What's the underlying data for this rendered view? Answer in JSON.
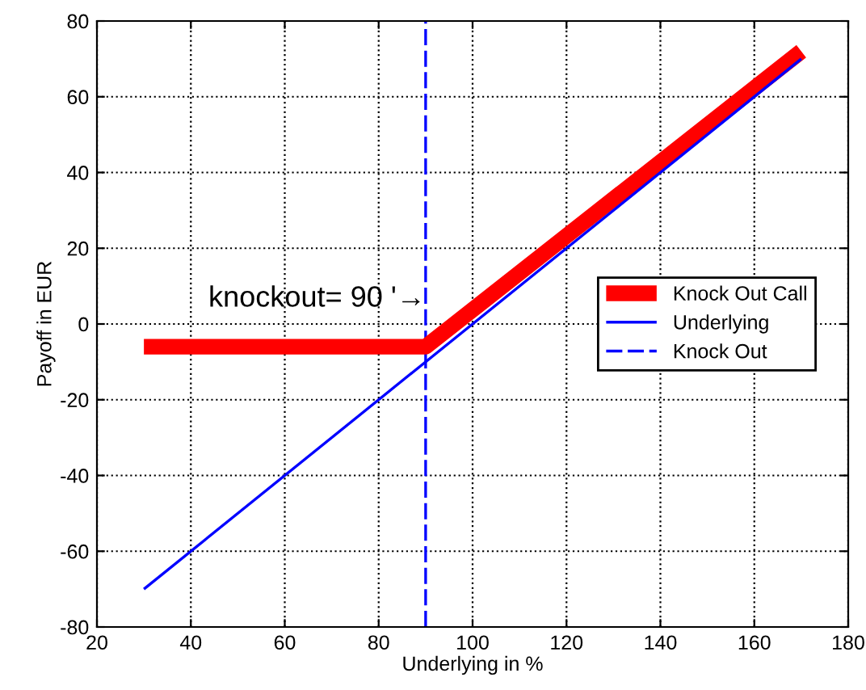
{
  "chart_data": {
    "type": "line",
    "xlabel": "Underlying in %",
    "ylabel": "Payoff in EUR",
    "series": [
      {
        "name": "Knock Out Call",
        "color": "#ff0000",
        "x": [
          30,
          90,
          170
        ],
        "values": [
          -6,
          -6,
          72
        ]
      },
      {
        "name": "Underlying",
        "color": "#0000ff",
        "x": [
          30,
          170
        ],
        "values": [
          -70,
          70
        ]
      },
      {
        "name": "Knock Out",
        "color": "#0000ff",
        "x": [
          90,
          90
        ],
        "values": [
          -80,
          80
        ],
        "line_style": "dashed"
      }
    ],
    "annotations": [
      {
        "text": "knockout= 90 '→",
        "x": 90,
        "y": 3
      }
    ],
    "xlim": [
      20,
      180
    ],
    "xticks": [
      20,
      40,
      60,
      80,
      100,
      120,
      140,
      160,
      180
    ],
    "ylim": [
      -80,
      80
    ],
    "yticks": [
      -80,
      -60,
      -40,
      -20,
      0,
      20,
      40,
      60,
      80
    ],
    "grid": true,
    "legend": "right",
    "marker": "none",
    "line_style": "solid"
  }
}
